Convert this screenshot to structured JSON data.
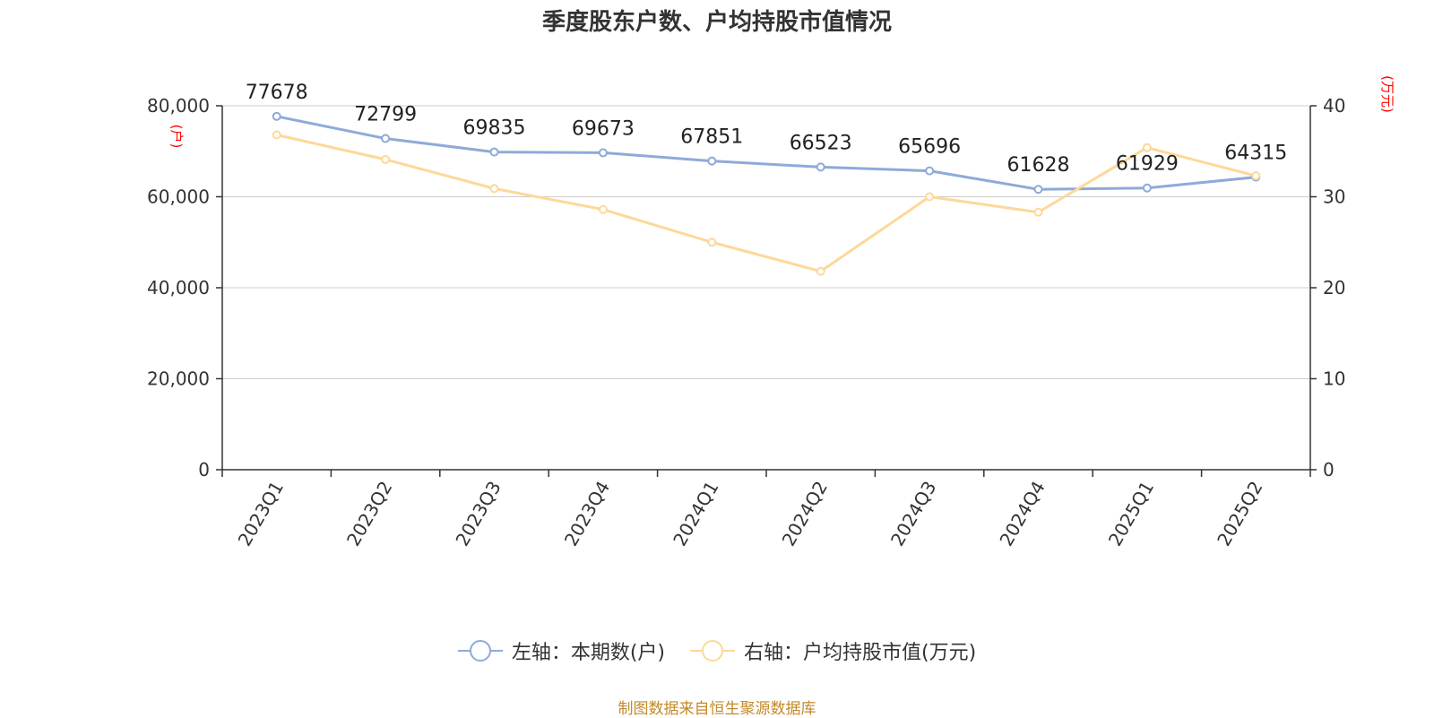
{
  "header": {
    "title": "季度股东户数、户均持股市值情况"
  },
  "footer": {
    "source": "制图数据来自恒生聚源数据库"
  },
  "chart_data": {
    "type": "line",
    "title": "季度股东户数、户均持股市值情况",
    "categories": [
      "2023Q1",
      "2023Q2",
      "2023Q3",
      "2023Q4",
      "2024Q1",
      "2024Q2",
      "2024Q3",
      "2024Q4",
      "2025Q1",
      "2025Q2"
    ],
    "y_left": {
      "label": "(户)",
      "min": 0,
      "max": 80000,
      "ticks": [
        0,
        20000,
        40000,
        60000,
        80000
      ],
      "tick_labels": [
        "0",
        "20,000",
        "40,000",
        "60,000",
        "80,000"
      ]
    },
    "y_right": {
      "label": "(万元)",
      "min": 0,
      "max": 40,
      "ticks": [
        0,
        10,
        20,
        30,
        40
      ],
      "tick_labels": [
        "0",
        "10",
        "20",
        "30",
        "40"
      ]
    },
    "grid": true,
    "legend_position": "bottom",
    "series": [
      {
        "name": "左轴：本期数(户)",
        "axis": "left",
        "color": "#8eaad8",
        "values": [
          77678,
          72799,
          69835,
          69673,
          67851,
          66523,
          65696,
          61628,
          61929,
          64315
        ],
        "data_labels": [
          "77678",
          "72799",
          "69835",
          "69673",
          "67851",
          "66523",
          "65696",
          "61628",
          "61929",
          "64315"
        ]
      },
      {
        "name": "右轴：户均持股市值(万元)",
        "axis": "right",
        "color": "#fdd89a",
        "values": [
          36.8,
          34.1,
          30.9,
          28.6,
          25.0,
          21.8,
          30.0,
          28.3,
          35.4,
          32.3
        ]
      }
    ],
    "axis_label_color": "#ff0000"
  }
}
